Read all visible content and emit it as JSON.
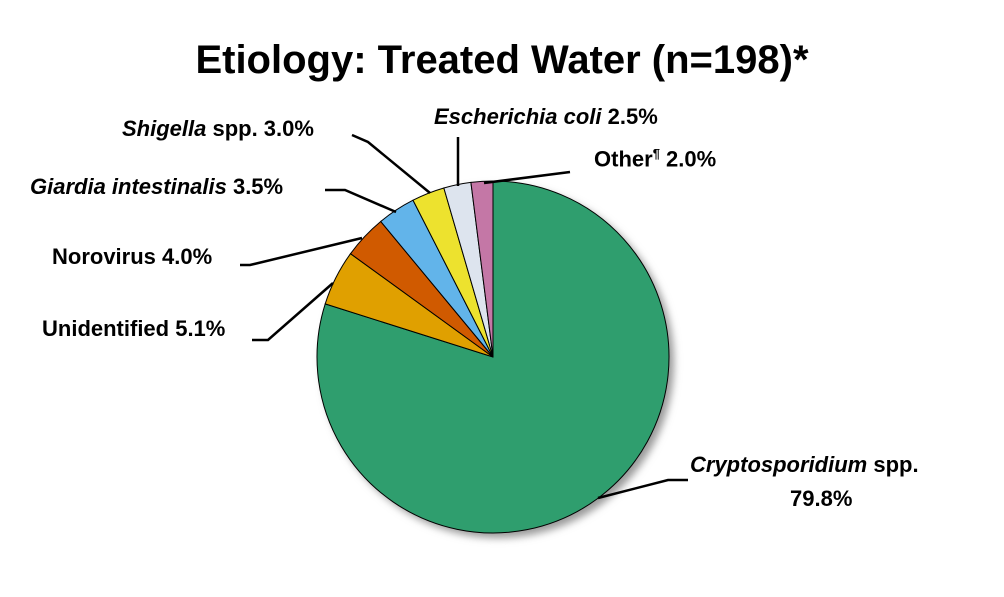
{
  "chart_data": {
    "type": "pie",
    "title": "Etiology: Treated Water (n=198)*",
    "categories": [
      "Cryptosporidium spp.",
      "Unidentified",
      "Norovirus",
      "Giardia intestinalis",
      "Shigella spp.",
      "Escherichia coli",
      "Other¶"
    ],
    "values": [
      79.8,
      5.1,
      4.0,
      3.5,
      3.0,
      2.5,
      2.0
    ],
    "unit": "%",
    "colors": [
      "#2f9e6e",
      "#e0a000",
      "#d05a00",
      "#62b4ea",
      "#ede22e",
      "#dde4ee",
      "#c477a6"
    ],
    "start_angle": "12 o'clock, clockwise",
    "legend": "none (leader-line labels)"
  },
  "labels": {
    "crypto_italic": "Cryptosporidium",
    "crypto_rest": " spp.",
    "crypto_value": "79.8%",
    "unidentified": "Unidentified 5.1%",
    "norovirus": "Norovirus 4.0%",
    "giardia_italic": "Giardia intestinalis",
    "giardia_value": " 3.5%",
    "shigella_italic": "Shigella",
    "shigella_rest": " spp. 3.0%",
    "ecoli_italic": "Escherichia coli",
    "ecoli_value": " 2.5%",
    "other_label": "Other",
    "other_mark": "¶",
    "other_value": " 2.0%"
  }
}
